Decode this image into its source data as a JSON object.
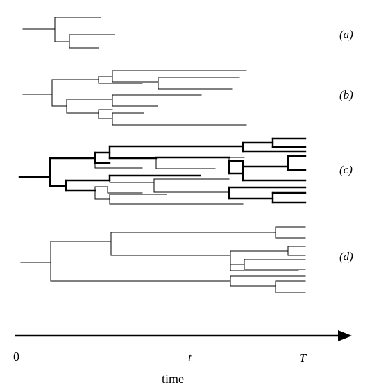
{
  "panels": [
    {
      "id": "a",
      "label": "(a)"
    },
    {
      "id": "b",
      "label": "(b)"
    },
    {
      "id": "c",
      "label": "(c)"
    },
    {
      "id": "d",
      "label": "(d)"
    }
  ],
  "axis": {
    "origin_label": "0",
    "t_label": "t",
    "end_label": "T",
    "title": "time"
  }
}
